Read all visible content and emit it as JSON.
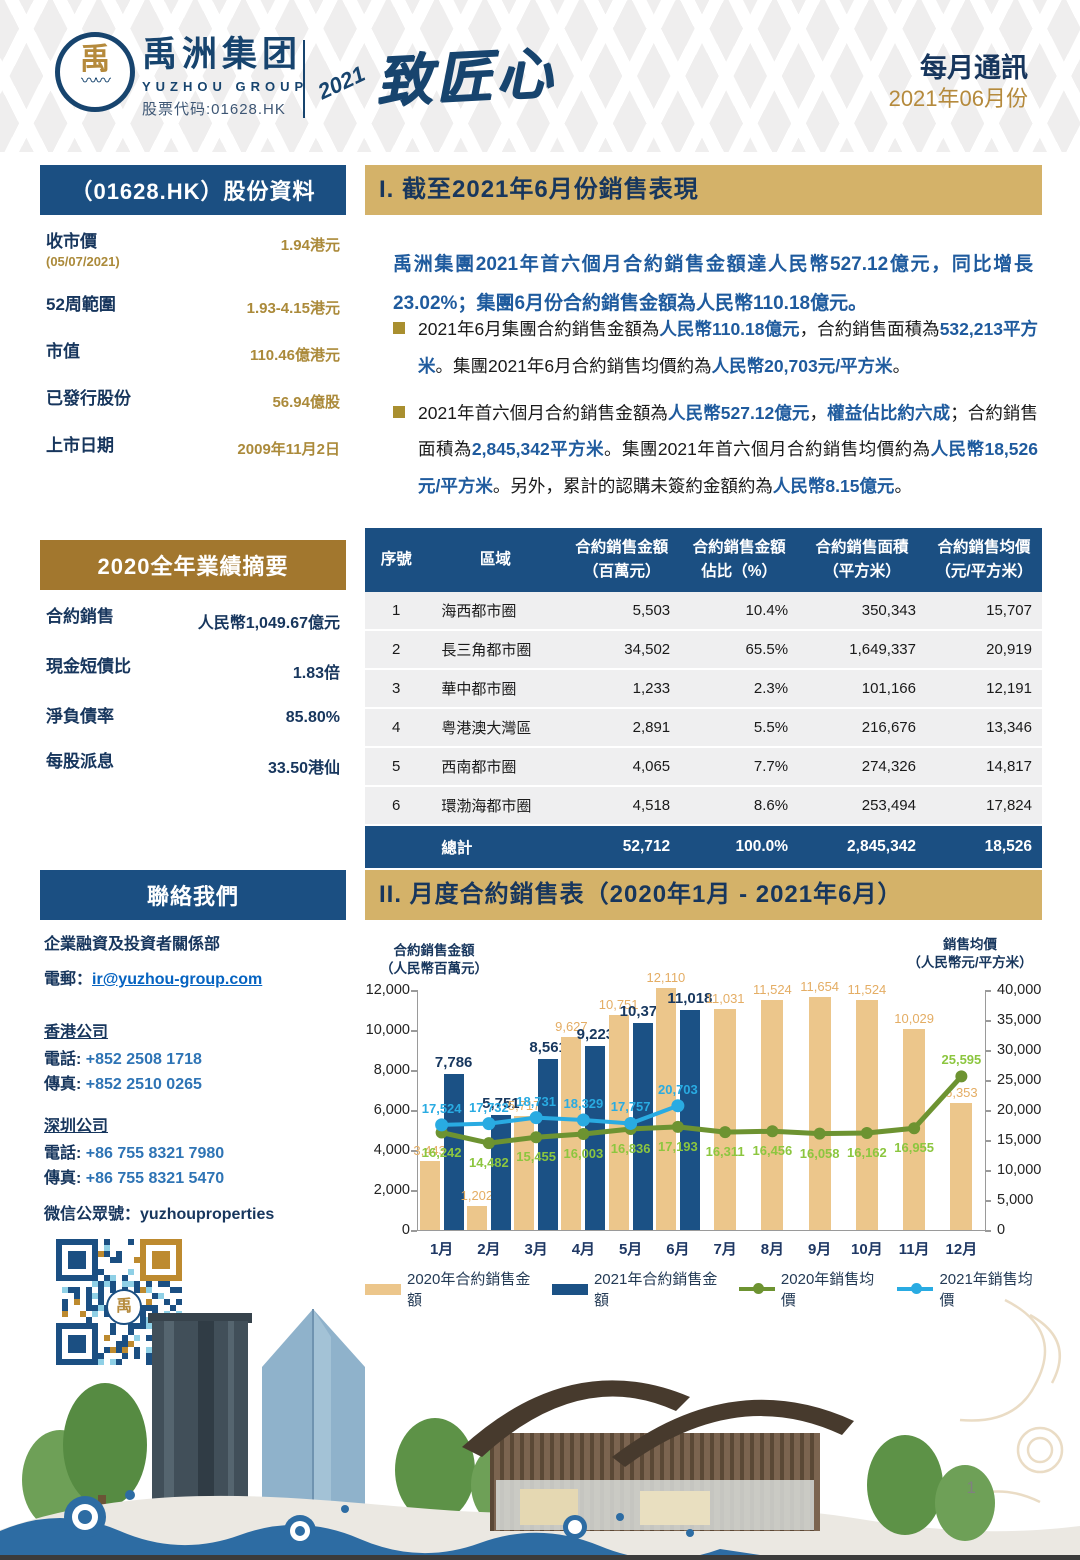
{
  "header": {
    "company_cn": "禹洲集团",
    "company_en": "YUZHOU GROUP",
    "stock_code_line": "股票代码:01628.HK",
    "calligraphy_year": "2021",
    "calligraphy_text": "致匠心",
    "newsletter_title": "每月通訊",
    "newsletter_period": "2021年06月份",
    "logo_glyph": "禹",
    "logo_wave_glyph": "〰〰"
  },
  "stock_panel": {
    "title": "（01628.HK）股份資料",
    "rows": [
      {
        "label": "收市價",
        "sublabel": "(05/07/2021)",
        "value": "1.94港元"
      },
      {
        "label": "52周範圍",
        "value": "1.93-4.15港元"
      },
      {
        "label": "市值",
        "value": "110.46億港元"
      },
      {
        "label": "已發行股份",
        "value": "56.94億股"
      },
      {
        "label": "上市日期",
        "value": "2009年11月2日"
      }
    ]
  },
  "summary_panel": {
    "title": "2020全年業績摘要",
    "rows": [
      {
        "label": "合約銷售",
        "value": "人民幣1,049.67億元"
      },
      {
        "label": "現金短債比",
        "value": "1.83倍"
      },
      {
        "label": "淨負債率",
        "value": "85.80%"
      },
      {
        "label": "每股派息",
        "value": "33.50港仙"
      }
    ]
  },
  "contact_panel": {
    "title": "聯絡我們",
    "dept": "企業融資及投資者關係部",
    "email_label": "電郵：",
    "email": "ir@yuzhou-group.com",
    "offices": [
      {
        "name": "香港公司",
        "phone_label": "電話:",
        "phone": "+852 2508 1718",
        "fax_label": "傳真:",
        "fax": "+852 2510 0265"
      },
      {
        "name": "深圳公司",
        "phone_label": "電話:",
        "phone": "+86 755 8321 7980",
        "fax_label": "傳真:",
        "fax": "+86 755 8321 5470"
      }
    ],
    "wechat_label": "微信公眾號：",
    "wechat": "yuzhouproperties"
  },
  "section1": {
    "title": "I. 截至2021年6月份銷售表現",
    "lead": "禹洲集團2021年首六個月合約銷售金額達人民幣527.12億元，同比增長23.02%；集團6月份合約銷售金額為人民幣110.18億元。",
    "bullets": [
      [
        {
          "t": "2021年6月集團合約銷售金額為"
        },
        {
          "t": "人民幣110.18億元",
          "hl": true
        },
        {
          "t": "，合約銷售面積為"
        },
        {
          "t": "532,213平方米",
          "hl": true
        },
        {
          "t": "。集團2021年6月合約銷售均價約為"
        },
        {
          "t": "人民幣20,703元/平方米",
          "hl": true
        },
        {
          "t": "。"
        }
      ],
      [
        {
          "t": "2021年首六個月合約銷售金額為"
        },
        {
          "t": "人民幣527.12億元",
          "hl": true
        },
        {
          "t": "，"
        },
        {
          "t": "權益佔比約六成",
          "hl": true
        },
        {
          "t": "；合約銷售面積為"
        },
        {
          "t": "2,845,342平方米",
          "hl": true
        },
        {
          "t": "。集團2021年首六個月合約銷售均價約為"
        },
        {
          "t": "人民幣18,526元/平方米",
          "hl": true
        },
        {
          "t": "。另外，累計的認購未簽約金額約為"
        },
        {
          "t": "人民幣8.15億元",
          "hl": true
        },
        {
          "t": "。"
        }
      ]
    ]
  },
  "sales_table": {
    "headers": [
      [
        "序號"
      ],
      [
        "區域"
      ],
      [
        "合約銷售金額",
        "（百萬元）"
      ],
      [
        "合約銷售金額",
        "佔比（%）"
      ],
      [
        "合約銷售面積",
        "（平方米）"
      ],
      [
        "合約銷售均價",
        "（元/平方米）"
      ]
    ],
    "rows": [
      [
        "1",
        "海西都市圈",
        "5,503",
        "10.4%",
        "350,343",
        "15,707"
      ],
      [
        "2",
        "長三角都市圈",
        "34,502",
        "65.5%",
        "1,649,337",
        "20,919"
      ],
      [
        "3",
        "華中都市圈",
        "1,233",
        "2.3%",
        "101,166",
        "12,191"
      ],
      [
        "4",
        "粤港澳大灣區",
        "2,891",
        "5.5%",
        "216,676",
        "13,346"
      ],
      [
        "5",
        "西南都市圈",
        "4,065",
        "7.7%",
        "274,326",
        "14,817"
      ],
      [
        "6",
        "環渤海都市圈",
        "4,518",
        "8.6%",
        "253,494",
        "17,824"
      ]
    ],
    "total": {
      "label": "總計",
      "values": [
        "52,712",
        "100.0%",
        "2,845,342",
        "18,526"
      ]
    }
  },
  "section2": {
    "title": "II. 月度合約銷售表（2020年1月 - 2021年6月）"
  },
  "chart_data": {
    "type": "bar",
    "subtype": "combo-dual-axis",
    "categories": [
      "1月",
      "2月",
      "3月",
      "4月",
      "5月",
      "6月",
      "7月",
      "8月",
      "9月",
      "10月",
      "11月",
      "12月"
    ],
    "left_axis": {
      "title_line1": "合約銷售金額",
      "title_line2": "（人民幣百萬元）",
      "min": 0,
      "max": 12000,
      "step": 2000
    },
    "right_axis": {
      "title_line1": "銷售均價",
      "title_line2": "（人民幣元/平方米）",
      "min": 0,
      "max": 40000,
      "step": 5000
    },
    "series": [
      {
        "name": "2020年合約銷售金額",
        "kind": "bar",
        "axis": "left",
        "color": "#ecc68b",
        "values": [
          3443,
          1202,
          5717,
          9627,
          10751,
          12110,
          11031,
          11524,
          11654,
          11524,
          10029,
          6353
        ]
      },
      {
        "name": "2021年合約銷售金額",
        "kind": "bar",
        "axis": "left",
        "color": "#1b5185",
        "values": [
          7786,
          5751,
          8561,
          9223,
          10373,
          11018,
          null,
          null,
          null,
          null,
          null,
          null
        ]
      },
      {
        "name": "2020年銷售均價",
        "kind": "line",
        "axis": "right",
        "color": "#6d9331",
        "label_color": "#8cc63f",
        "values": [
          16242,
          14482,
          15455,
          16003,
          16836,
          17193,
          16311,
          16456,
          16058,
          16162,
          16955,
          25595
        ]
      },
      {
        "name": "2021年銷售均價",
        "kind": "line",
        "axis": "right",
        "color": "#29abe2",
        "label_color": "#29abe2",
        "values": [
          17524,
          17732,
          18731,
          18329,
          17757,
          20703,
          null,
          null,
          null,
          null,
          null,
          null
        ]
      }
    ],
    "grid": false,
    "legend_position": "bottom"
  },
  "footer": {
    "page_number": "1"
  },
  "colors": {
    "navy": "#1b4f82",
    "brown_gold": "#a2772e",
    "section_gold": "#d4b269",
    "value_gold": "#ab8a3a",
    "highlight_blue": "#1f5b9e",
    "link_blue": "#0563c1",
    "phone_blue": "#2e74b5"
  }
}
